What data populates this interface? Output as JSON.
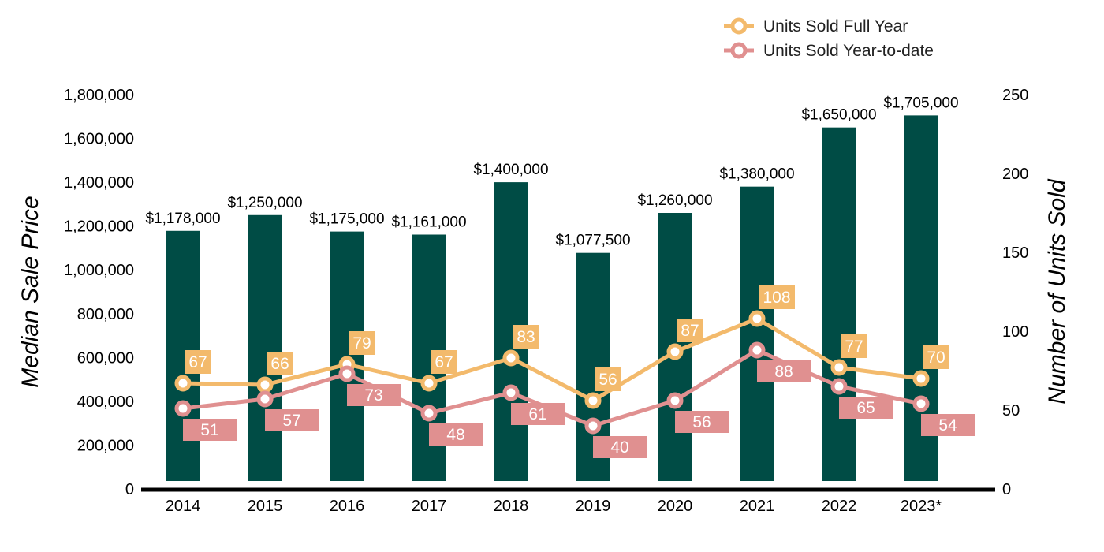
{
  "chart_data": {
    "type": "bar",
    "categories": [
      "2014",
      "2015",
      "2016",
      "2017",
      "2018",
      "2019",
      "2020",
      "2021",
      "2022",
      "2023*"
    ],
    "bar_series": {
      "values": [
        1178000,
        1250000,
        1175000,
        1161000,
        1400000,
        1077500,
        1260000,
        1380000,
        1650000,
        1705000
      ],
      "labels": [
        "$1,178,000",
        "$1,250,000",
        "$1,175,000",
        "$1,161,000",
        "$1,400,000",
        "$1,077,500",
        "$1,260,000",
        "$1,380,000",
        "$1,650,000",
        "$1,705,000"
      ],
      "color": "#004C45",
      "axis": "left"
    },
    "series": [
      {
        "name": "Units Sold Full Year",
        "type": "line",
        "axis": "right",
        "color": "#F3BA6C",
        "values": [
          67,
          66,
          79,
          67,
          83,
          56,
          87,
          108,
          77,
          70
        ],
        "labels": [
          "67",
          "66",
          "79",
          "67",
          "83",
          "56",
          "87",
          "108",
          "77",
          "70"
        ]
      },
      {
        "name": "Units Sold Year-to-date",
        "type": "line",
        "axis": "right",
        "color": "#E09090",
        "values": [
          51,
          57,
          73,
          48,
          61,
          40,
          56,
          88,
          65,
          54
        ],
        "labels": [
          "51",
          "57",
          "73",
          "48",
          "61",
          "40",
          "56",
          "88",
          "65",
          "54"
        ]
      }
    ],
    "y_left": {
      "label": "Median Sale Price",
      "range": [
        0,
        1800000
      ],
      "ticks": [
        "0",
        "200,000",
        "400,000",
        "600,000",
        "800,000",
        "1,000,000",
        "1,200,000",
        "1,400,000",
        "1,600,000",
        "1,800,000"
      ]
    },
    "y_right": {
      "label": "Number of Units Sold",
      "range": [
        0,
        250
      ],
      "ticks": [
        "0",
        "50",
        "100",
        "150",
        "200",
        "250"
      ]
    },
    "grid": false,
    "legend_position": "top-right"
  }
}
